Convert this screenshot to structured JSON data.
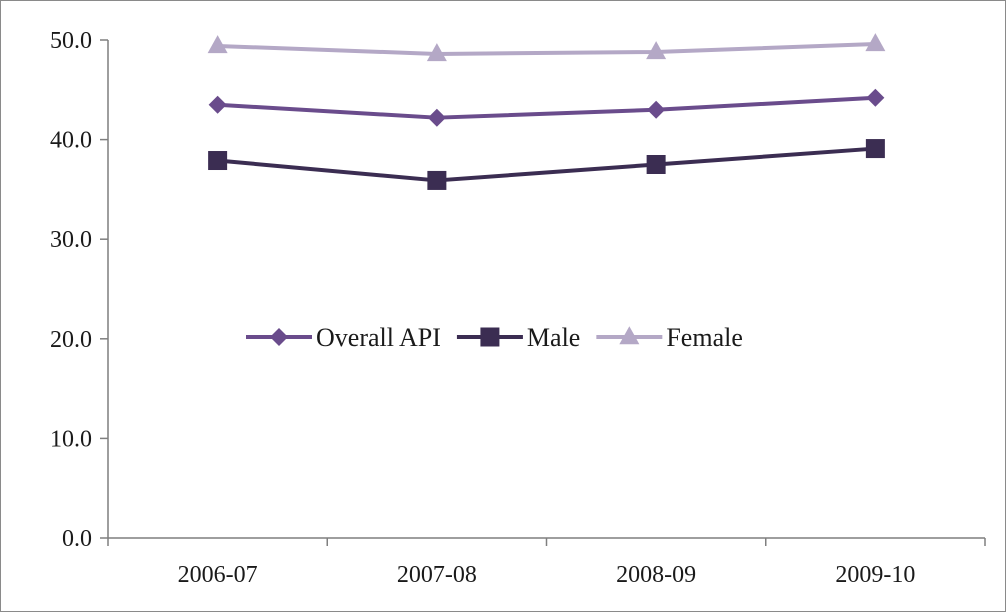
{
  "chart_data": {
    "type": "line",
    "categories": [
      "2006-07",
      "2007-08",
      "2008-09",
      "2009-10"
    ],
    "ylim": [
      0,
      50
    ],
    "yticks": [
      "0.0",
      "10.0",
      "20.0",
      "30.0",
      "40.0",
      "50.0"
    ],
    "grid": false,
    "legend_position": "center",
    "series": [
      {
        "name": "Overall API",
        "values": [
          43.5,
          42.2,
          43.0,
          44.2
        ],
        "color": "#6a4c8c",
        "marker": "diamond"
      },
      {
        "name": "Male",
        "values": [
          37.9,
          35.9,
          37.5,
          39.1
        ],
        "color": "#3b2d52",
        "marker": "square"
      },
      {
        "name": "Female",
        "values": [
          49.4,
          48.6,
          48.8,
          49.6
        ],
        "color": "#b4a8c6",
        "marker": "triangle"
      }
    ]
  }
}
